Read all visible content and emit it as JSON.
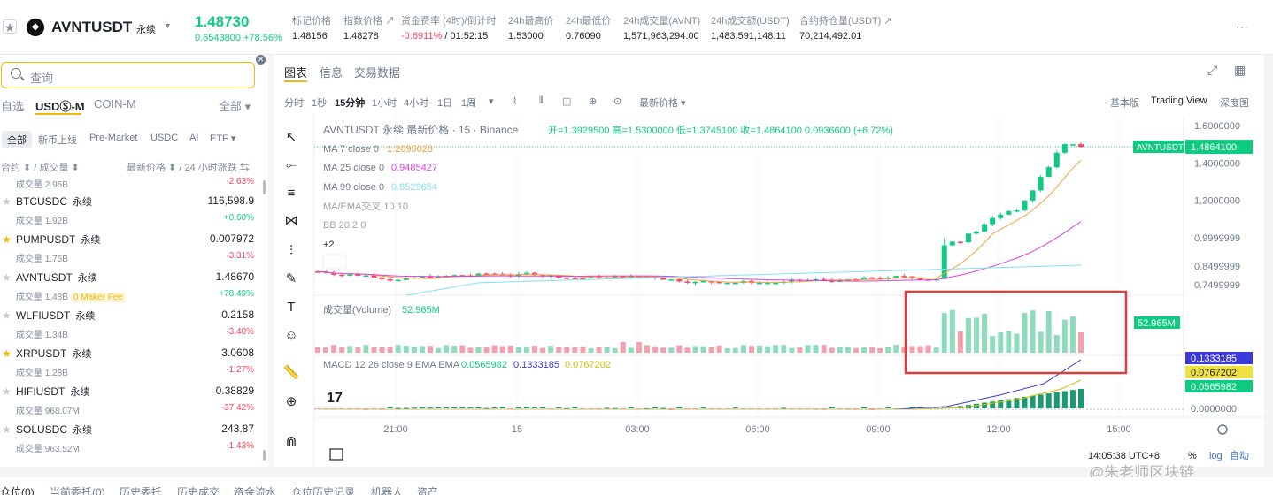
{
  "header": {
    "symbol": "AVNTUSDT",
    "perp_label": "永续",
    "last_price": "1.48730",
    "change": "0.6543800 +78.56%",
    "stats": [
      {
        "label": "标记价格",
        "value": "1.48156"
      },
      {
        "label": "指数价格 ↗",
        "value": "1.48278"
      },
      {
        "label": "资金费率 (4时)/倒计时",
        "value_neg": "-0.6911%",
        "value": " / 01:52:15"
      },
      {
        "label": "24h最高价",
        "value": "1.53000"
      },
      {
        "label": "24h最低价",
        "value": "0.76090"
      },
      {
        "label": "24h成交量(AVNT)",
        "value": "1,571,963,294.00"
      },
      {
        "label": "24h成交额(USDT)",
        "value": "1,483,591,148.11"
      },
      {
        "label": "合约持仓量(USDT) ↗",
        "value": "70,214,492.01"
      }
    ]
  },
  "left": {
    "search_placeholder": "查询",
    "tabs1": [
      "自选",
      "USDⓈ-M",
      "COIN-M",
      "全部 ▾"
    ],
    "tabs2": [
      "全部",
      "新币上线",
      "Pre-Market",
      "USDC",
      "AI",
      "ETF ▾"
    ],
    "col_left": "合约 ⬍ / 成交量 ⬍",
    "col_right": "最新价格 ⬍ / 24 小时涨跌 ⇆",
    "first_vol": "成交量 2.95B",
    "first_chg": "-2.63%",
    "rows": [
      {
        "sym": "BTCUSDC",
        "perp": "永续",
        "vol": "成交量 1.92B",
        "price": "116,598.9",
        "chg": "+0.60%",
        "fav": false,
        "up": true
      },
      {
        "sym": "PUMPUSDT",
        "perp": "永续",
        "vol": "成交量 1.75B",
        "price": "0.007972",
        "chg": "-3.31%",
        "fav": true,
        "up": false
      },
      {
        "sym": "AVNTUSDT",
        "perp": "永续",
        "vol": "成交量 1.48B",
        "badge": "0 Maker Fee",
        "price": "1.48670",
        "chg": "+78.49%",
        "fav": false,
        "up": true
      },
      {
        "sym": "WLFIUSDT",
        "perp": "永续",
        "vol": "成交量 1.34B",
        "price": "0.2158",
        "chg": "-3.40%",
        "fav": false,
        "up": false
      },
      {
        "sym": "XRPUSDT",
        "perp": "永续",
        "vol": "成交量 1.28B",
        "price": "3.0608",
        "chg": "-1.27%",
        "fav": true,
        "up": false
      },
      {
        "sym": "HIFIUSDT",
        "perp": "永续",
        "vol": "成交量 968.07M",
        "price": "0.38829",
        "chg": "-37.42%",
        "fav": false,
        "up": false
      },
      {
        "sym": "SOLUSDC",
        "perp": "永续",
        "vol": "成交量 963.52M",
        "price": "243.87",
        "chg": "-1.43%",
        "fav": false,
        "up": false
      }
    ]
  },
  "chart": {
    "tabs": [
      "图表",
      "信息",
      "交易数据"
    ],
    "timeframes": [
      "分时",
      "1秒",
      "15分钟",
      "1小时",
      "4小时",
      "1日",
      "1周",
      "▾"
    ],
    "price_type": "最新价格 ▾",
    "view_options": [
      "基本版",
      "Trading View",
      "深度图"
    ],
    "legend_title": "AVNTUSDT 永续 最新价格 · 15 · Binance",
    "ohlc": "开=1.3929500 高=1.5300000 低=1.3745100 收=1.4864100 0.0936600 (+6.72%)",
    "ma7_label": "MA 7 close 0",
    "ma7_val": "1.2095028",
    "ma25_label": "MA 25 close 0",
    "ma25_val": "0.9485427",
    "ma99_label": "MA 99 close 0",
    "ma99_val": "0.8529654",
    "maema": "MA/EMA交叉 10 10",
    "bb": "BB 20 2 0",
    "more": "+2",
    "vol_label": "成交量(Volume)",
    "vol_val": "52.965M",
    "macd_label": "MACD 12 26 close 9 EMA EMA",
    "macd_v1": "0.0565982",
    "macd_v2": "0.1333185",
    "macd_v3": "0.0767202",
    "price_ticks": [
      "1.6000000",
      "1.4000000",
      "1.2000000",
      "0.9999999",
      "0.8499999",
      "0.7499999"
    ],
    "price_tag_symbol": "AVNTUSDT",
    "price_tag_value": "1.4864100",
    "vol_tag": "52.965M",
    "macd_tags": [
      "0.1333185",
      "0.0767202",
      "0.0565982"
    ],
    "macd_zero": "0.0000000",
    "time_ticks": [
      "21:00",
      "15",
      "03:00",
      "06:00",
      "09:00",
      "12:00",
      "15:00"
    ],
    "clock": "14:05:38 UTC+8",
    "scale_opts": [
      "%",
      "log",
      "自动"
    ],
    "colors": {
      "up": "#0ecb81",
      "down": "#f6465d",
      "ma7": "#f0a040",
      "ma25": "#e040e0",
      "ma99": "#80e0f0",
      "highlight": "#e03c3c"
    }
  },
  "bottom": {
    "tabs": [
      "仓位(0)",
      "当前委托(0)",
      "历史委托",
      "历史成交",
      "资金流水",
      "仓位历史记录",
      "机器人",
      "资产"
    ]
  },
  "watermark": "@朱老师区块链"
}
